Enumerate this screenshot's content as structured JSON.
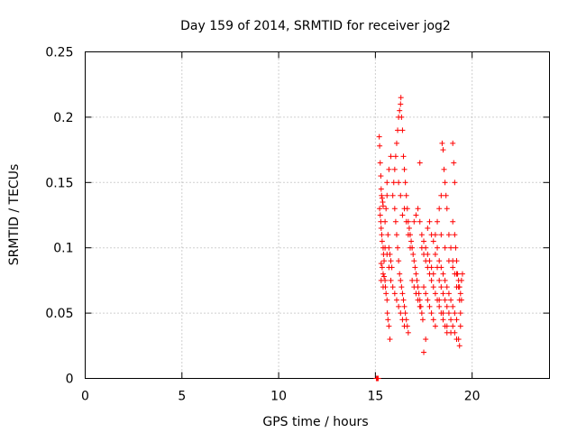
{
  "chart_data": {
    "type": "scatter",
    "title": "Day 159 of 2014, SRMTID for receiver jog2",
    "xlabel": "GPS time / hours",
    "ylabel": "SRMTID / TECUs",
    "xlim": [
      0,
      24
    ],
    "ylim": [
      0,
      0.25
    ],
    "xticks": [
      0,
      5,
      10,
      15,
      20
    ],
    "yticks": [
      0,
      0.05,
      0.1,
      0.15,
      0.2,
      0.25
    ],
    "ytick_labels": [
      "0",
      "0.05",
      "0.1",
      "0.15",
      "0.2",
      "0.25"
    ],
    "grid": true,
    "marker": "plus",
    "color": "#ff0000",
    "series": [
      {
        "points": [
          [
            15.05,
            0.0
          ],
          [
            15.1,
            0.0
          ],
          [
            15.15,
            0.0
          ],
          [
            15.2,
            0.185
          ],
          [
            15.22,
            0.178
          ],
          [
            15.25,
            0.165
          ],
          [
            15.28,
            0.155
          ],
          [
            15.3,
            0.145
          ],
          [
            15.32,
            0.14
          ],
          [
            15.35,
            0.138
          ],
          [
            15.38,
            0.135
          ],
          [
            15.4,
            0.132
          ],
          [
            15.22,
            0.13
          ],
          [
            15.25,
            0.125
          ],
          [
            15.28,
            0.12
          ],
          [
            15.3,
            0.115
          ],
          [
            15.33,
            0.11
          ],
          [
            15.35,
            0.105
          ],
          [
            15.4,
            0.1
          ],
          [
            15.42,
            0.095
          ],
          [
            15.45,
            0.09
          ],
          [
            15.3,
            0.088
          ],
          [
            15.35,
            0.085
          ],
          [
            15.4,
            0.08
          ],
          [
            15.45,
            0.078
          ],
          [
            15.5,
            0.075
          ],
          [
            15.52,
            0.07
          ],
          [
            15.55,
            0.065
          ],
          [
            15.6,
            0.06
          ],
          [
            15.62,
            0.05
          ],
          [
            15.65,
            0.045
          ],
          [
            15.7,
            0.04
          ],
          [
            15.75,
            0.03
          ],
          [
            15.5,
            0.12
          ],
          [
            15.55,
            0.13
          ],
          [
            15.6,
            0.14
          ],
          [
            15.65,
            0.11
          ],
          [
            15.7,
            0.1
          ],
          [
            15.75,
            0.095
          ],
          [
            15.8,
            0.09
          ],
          [
            15.85,
            0.085
          ],
          [
            15.9,
            0.14
          ],
          [
            15.95,
            0.15
          ],
          [
            16.0,
            0.16
          ],
          [
            16.05,
            0.17
          ],
          [
            16.1,
            0.18
          ],
          [
            16.15,
            0.19
          ],
          [
            16.2,
            0.2
          ],
          [
            16.25,
            0.205
          ],
          [
            16.3,
            0.21
          ],
          [
            16.32,
            0.215
          ],
          [
            16.35,
            0.2
          ],
          [
            16.4,
            0.19
          ],
          [
            16.45,
            0.17
          ],
          [
            16.5,
            0.16
          ],
          [
            16.55,
            0.15
          ],
          [
            16.0,
            0.13
          ],
          [
            16.05,
            0.12
          ],
          [
            16.1,
            0.11
          ],
          [
            16.15,
            0.1
          ],
          [
            16.2,
            0.09
          ],
          [
            16.25,
            0.08
          ],
          [
            16.3,
            0.075
          ],
          [
            16.35,
            0.07
          ],
          [
            16.4,
            0.065
          ],
          [
            16.45,
            0.06
          ],
          [
            16.5,
            0.055
          ],
          [
            16.55,
            0.05
          ],
          [
            16.6,
            0.045
          ],
          [
            16.65,
            0.04
          ],
          [
            16.7,
            0.035
          ],
          [
            16.6,
            0.14
          ],
          [
            16.65,
            0.13
          ],
          [
            16.7,
            0.12
          ],
          [
            16.75,
            0.115
          ],
          [
            16.8,
            0.11
          ],
          [
            16.85,
            0.105
          ],
          [
            16.9,
            0.1
          ],
          [
            16.95,
            0.095
          ],
          [
            17.0,
            0.09
          ],
          [
            17.05,
            0.085
          ],
          [
            17.1,
            0.08
          ],
          [
            17.15,
            0.075
          ],
          [
            17.2,
            0.07
          ],
          [
            17.25,
            0.065
          ],
          [
            17.3,
            0.06
          ],
          [
            17.35,
            0.055
          ],
          [
            17.4,
            0.05
          ],
          [
            17.45,
            0.045
          ],
          [
            17.0,
            0.12
          ],
          [
            17.1,
            0.125
          ],
          [
            17.2,
            0.13
          ],
          [
            17.3,
            0.12
          ],
          [
            17.4,
            0.11
          ],
          [
            17.5,
            0.105
          ],
          [
            17.6,
            0.1
          ],
          [
            17.7,
            0.095
          ],
          [
            17.8,
            0.09
          ],
          [
            17.9,
            0.085
          ],
          [
            18.0,
            0.08
          ],
          [
            17.5,
            0.07
          ],
          [
            17.6,
            0.065
          ],
          [
            17.7,
            0.06
          ],
          [
            17.8,
            0.055
          ],
          [
            17.9,
            0.05
          ],
          [
            18.0,
            0.045
          ],
          [
            18.1,
            0.04
          ],
          [
            17.3,
            0.165
          ],
          [
            17.5,
            0.02
          ],
          [
            17.6,
            0.03
          ],
          [
            18.1,
            0.11
          ],
          [
            18.2,
            0.12
          ],
          [
            18.3,
            0.13
          ],
          [
            18.4,
            0.14
          ],
          [
            18.45,
            0.18
          ],
          [
            18.5,
            0.175
          ],
          [
            18.55,
            0.16
          ],
          [
            18.6,
            0.15
          ],
          [
            18.65,
            0.14
          ],
          [
            18.7,
            0.13
          ],
          [
            18.2,
            0.1
          ],
          [
            18.3,
            0.09
          ],
          [
            18.4,
            0.085
          ],
          [
            18.5,
            0.08
          ],
          [
            18.6,
            0.075
          ],
          [
            18.7,
            0.07
          ],
          [
            18.8,
            0.065
          ],
          [
            18.9,
            0.06
          ],
          [
            19.0,
            0.055
          ],
          [
            19.1,
            0.05
          ],
          [
            19.2,
            0.045
          ],
          [
            18.3,
            0.06
          ],
          [
            18.5,
            0.05
          ],
          [
            18.7,
            0.04
          ],
          [
            18.9,
            0.035
          ],
          [
            18.4,
            0.11
          ],
          [
            18.6,
            0.1
          ],
          [
            18.8,
            0.09
          ],
          [
            19.0,
            0.085
          ],
          [
            19.2,
            0.08
          ],
          [
            19.3,
            0.075
          ],
          [
            19.35,
            0.07
          ],
          [
            19.4,
            0.065
          ],
          [
            19.45,
            0.06
          ],
          [
            19.0,
            0.18
          ],
          [
            19.05,
            0.165
          ],
          [
            19.1,
            0.15
          ],
          [
            19.0,
            0.12
          ],
          [
            19.1,
            0.11
          ],
          [
            19.15,
            0.1
          ],
          [
            19.2,
            0.09
          ],
          [
            19.25,
            0.08
          ],
          [
            19.3,
            0.07
          ],
          [
            19.35,
            0.06
          ],
          [
            19.4,
            0.05
          ],
          [
            19.3,
            0.03
          ],
          [
            19.35,
            0.025
          ],
          [
            19.4,
            0.04
          ],
          [
            19.45,
            0.075
          ],
          [
            19.5,
            0.08
          ],
          [
            15.6,
            0.15
          ],
          [
            15.7,
            0.16
          ],
          [
            15.8,
            0.17
          ],
          [
            16.2,
            0.15
          ],
          [
            16.3,
            0.14
          ],
          [
            16.4,
            0.125
          ],
          [
            16.5,
            0.13
          ],
          [
            16.6,
            0.12
          ],
          [
            16.7,
            0.11
          ],
          [
            16.8,
            0.1
          ],
          [
            16.9,
            0.075
          ],
          [
            17.0,
            0.07
          ],
          [
            17.1,
            0.065
          ],
          [
            17.2,
            0.06
          ],
          [
            17.3,
            0.055
          ],
          [
            17.4,
            0.1
          ],
          [
            17.5,
            0.095
          ],
          [
            17.6,
            0.09
          ],
          [
            17.7,
            0.085
          ],
          [
            17.8,
            0.08
          ],
          [
            17.9,
            0.075
          ],
          [
            18.0,
            0.07
          ],
          [
            18.1,
            0.065
          ],
          [
            18.2,
            0.06
          ],
          [
            18.3,
            0.055
          ],
          [
            18.4,
            0.05
          ],
          [
            18.5,
            0.045
          ],
          [
            18.6,
            0.04
          ],
          [
            18.7,
            0.035
          ],
          [
            18.8,
            0.11
          ],
          [
            18.9,
            0.1
          ],
          [
            19.0,
            0.09
          ],
          [
            19.1,
            0.08
          ],
          [
            19.2,
            0.07
          ],
          [
            15.3,
            0.075
          ],
          [
            15.4,
            0.07
          ],
          [
            15.5,
            0.1
          ],
          [
            15.6,
            0.095
          ],
          [
            15.7,
            0.085
          ],
          [
            15.8,
            0.075
          ],
          [
            15.9,
            0.07
          ],
          [
            16.0,
            0.065
          ],
          [
            16.1,
            0.06
          ],
          [
            16.2,
            0.055
          ],
          [
            16.3,
            0.05
          ],
          [
            16.4,
            0.045
          ],
          [
            16.5,
            0.04
          ],
          [
            17.7,
            0.115
          ],
          [
            17.8,
            0.12
          ],
          [
            17.9,
            0.11
          ],
          [
            18.0,
            0.105
          ],
          [
            18.1,
            0.095
          ],
          [
            18.2,
            0.085
          ],
          [
            18.3,
            0.075
          ],
          [
            18.4,
            0.07
          ],
          [
            18.5,
            0.065
          ],
          [
            18.6,
            0.06
          ],
          [
            18.7,
            0.055
          ],
          [
            18.8,
            0.05
          ],
          [
            18.9,
            0.045
          ],
          [
            19.0,
            0.04
          ],
          [
            19.1,
            0.035
          ],
          [
            19.2,
            0.03
          ]
        ]
      }
    ]
  }
}
